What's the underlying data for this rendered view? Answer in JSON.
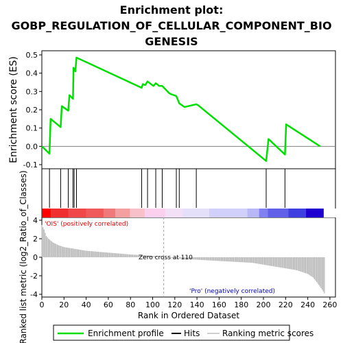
{
  "title_lines": [
    "Enrichment plot:",
    "GOBP_REGULATION_OF_CELLULAR_COMPONENT_BIO",
    "GENESIS"
  ],
  "colors": {
    "enrichment_line": "#00e000",
    "hit_line": "#000000",
    "zero_line": "#808080",
    "metric_bar": "#b8b8b8",
    "zero_cross_line": "#a0a0a0",
    "pos_text": "#e00000",
    "neg_text": "#0000c0"
  },
  "chart_data": {
    "type": "line",
    "title": "Enrichment plot: GOBP_REGULATION_OF_CELLULAR_COMPONENT_BIOGENESIS",
    "es_panel": {
      "ylabel": "Enrichment score (ES)",
      "ylim": [
        -0.1,
        0.5
      ],
      "yticks": [
        "-0.1",
        "0.0",
        "0.1",
        "0.2",
        "0.3",
        "0.4",
        "0.5"
      ],
      "ytick_values": [
        -0.1,
        0.0,
        0.1,
        0.2,
        0.3,
        0.4,
        0.5
      ],
      "series": [
        {
          "name": "Enrichment profile",
          "x": [
            0,
            13,
            15,
            32,
            34,
            45,
            47,
            53,
            54,
            57,
            59,
            170,
            172,
            176,
            180,
            190,
            194,
            200,
            205,
            217,
            220,
            229,
            234,
            243,
            263,
            266,
            382,
            386,
            414,
            416,
            474
          ],
          "y": [
            0.0,
            -0.04,
            0.15,
            0.105,
            0.22,
            0.195,
            0.28,
            0.26,
            0.43,
            0.41,
            0.485,
            0.32,
            0.34,
            0.335,
            0.355,
            0.33,
            0.345,
            0.33,
            0.33,
            0.29,
            0.285,
            0.275,
            0.235,
            0.215,
            0.23,
            0.225,
            -0.08,
            0.04,
            -0.045,
            0.12,
            0.0
          ]
        }
      ],
      "xlim": [
        0,
        500
      ]
    },
    "hits": [
      13,
      32,
      45,
      53,
      55,
      59,
      170,
      180,
      194,
      205,
      229,
      234,
      263,
      382,
      414
    ],
    "rank_panel": {
      "ylabel": "Ranked list metric (log2_Ratio_of_Classes)",
      "xlabel": "Rank in Ordered Dataset",
      "xlim": [
        0,
        265
      ],
      "ylim": [
        -4,
        4
      ],
      "xticks": [
        "0",
        "20",
        "40",
        "60",
        "80",
        "100",
        "120",
        "140",
        "160",
        "180",
        "200",
        "220",
        "240",
        "260"
      ],
      "xtick_values": [
        0,
        20,
        40,
        60,
        80,
        100,
        120,
        140,
        160,
        180,
        200,
        220,
        240,
        260
      ],
      "yticks": [
        "-4",
        "-2",
        "0",
        "2",
        "4"
      ],
      "ytick_values": [
        -4,
        -2,
        0,
        2,
        4
      ],
      "zero_cross_rank": 110,
      "metric_profile": {
        "ranks": [
          0,
          2,
          4,
          6,
          10,
          15,
          20,
          30,
          40,
          60,
          80,
          100,
          110,
          130,
          160,
          190,
          200,
          210,
          220,
          230,
          240,
          245,
          250,
          253,
          255
        ],
        "values": [
          3.5,
          3.0,
          2.3,
          2.0,
          1.6,
          1.3,
          1.1,
          0.9,
          0.7,
          0.5,
          0.3,
          0.15,
          0.0,
          -0.2,
          -0.4,
          -0.6,
          -0.8,
          -1.0,
          -1.2,
          -1.4,
          -1.8,
          -2.2,
          -3.0,
          -3.5,
          -3.9
        ]
      }
    },
    "annotations": {
      "positive_label": "'OIS' (positively correlated)",
      "negative_label": "'Pro' (negatively correlated)",
      "zero_cross_label": "Zero cross at 110"
    },
    "legend": [
      "Enrichment profile",
      "Hits",
      "Ranking metric scores"
    ],
    "legend_placement": "bottom"
  }
}
